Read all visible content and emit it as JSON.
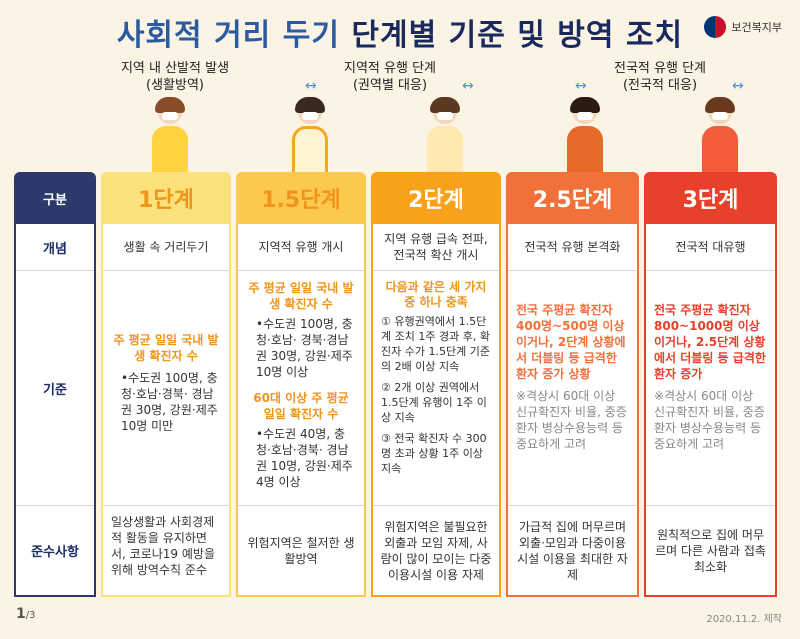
{
  "title_a": "사회적 거리 두기",
  "title_b": "단계별 기준 및 방역 조치",
  "logo_text": "보건복지부",
  "phases": [
    {
      "l1": "지역 내 산발적 발생",
      "l2": "(생활방역)"
    },
    {
      "l1": "지역적 유행 단계",
      "l2": "(권역별 대응)"
    },
    {
      "l1": "전국적 유행 단계",
      "l2": "(전국적 대응)"
    }
  ],
  "arrow": "↔",
  "labels": {
    "head": "구분",
    "concept": "개념",
    "criteria": "기준",
    "rules": "준수사항"
  },
  "stages": [
    {
      "name": "1단계",
      "concept": "생활 속 거리두기",
      "crit_title": "주 평균 일일 국내 발생 확진자 수",
      "crit_list": "•수도권 100명, 충청·호남·경북· 경남권 30명, 강원·제주 10명 미만",
      "rules": "일상생활과 사회경제적 활동을 유지하면서, 코로나19 예방을 위해 방역수칙 준수"
    },
    {
      "name": "1.5단계",
      "concept": "지역적 유행 개시",
      "crit_title": "주 평균 일일 국내 발생 확진자 수",
      "crit_list": "•수도권 100명, 충청·호남· 경북·경남권 30명, 강원·제주 10명 이상",
      "crit_title2": "60대 이상 주 평균 일일 확진자 수",
      "crit_list2": "•수도권 40명, 충청·호남·경북· 경남권 10명, 강원·제주 4명 이상",
      "rules": "위험지역은 철저한 생활방역"
    },
    {
      "name": "2단계",
      "concept": "지역 유행 급속 전파, 전국적 확산 개시",
      "crit_title": "다음과 같은 세 가지 중 하나 충족",
      "c1": "① 유행권역에서 1.5단계 조치 1주 경과 후, 확진자 수가 1.5단계 기준의 2배 이상 지속",
      "c2": "② 2개 이상 권역에서 1.5단계 유행이 1주 이상 지속",
      "c3": "③ 전국 확진자 수 300명 초과 상황 1주 이상 지속",
      "rules": "위험지역은 불필요한 외출과 모임 자제, 사람이 많이 모이는 다중이용시설 이용 자제"
    },
    {
      "name": "2.5단계",
      "concept": "전국적 유행 본격화",
      "crit_title": "전국 주평균 확진자 400명~500명 이상이거나, 2단계 상황에서 더블링 등 급격한 환자 증가 상황",
      "note": "※격상시 60대 이상 신규확진자 비율, 중증환자 병상수용능력 등 중요하게 고려",
      "rules": "가급적 집에 머무르며 외출·모임과 다중이용시설 이용을 최대한 자제"
    },
    {
      "name": "3단계",
      "concept": "전국적 대유행",
      "crit_title": "전국 주평균 확진자 800~1000명 이상이거나, 2.5단계 상황에서 더블링 등 급격한 환자 증가",
      "note": "※격상시 60대 이상 신규확진자 비율, 중증환자 병상수용능력 등 중요하게 고려",
      "rules": "원칙적으로 집에 머무르며 다른 사람과 접촉 최소화"
    }
  ],
  "colors": {
    "label_head": "#2b3a6b",
    "s1": "#fde17c",
    "s15": "#fcc94f",
    "s2": "#f7a21a",
    "s25": "#f2703a",
    "s3": "#e8402b"
  },
  "footer_page": "1",
  "footer_total": "/3",
  "footer_date": "2020.11.2. 제작"
}
